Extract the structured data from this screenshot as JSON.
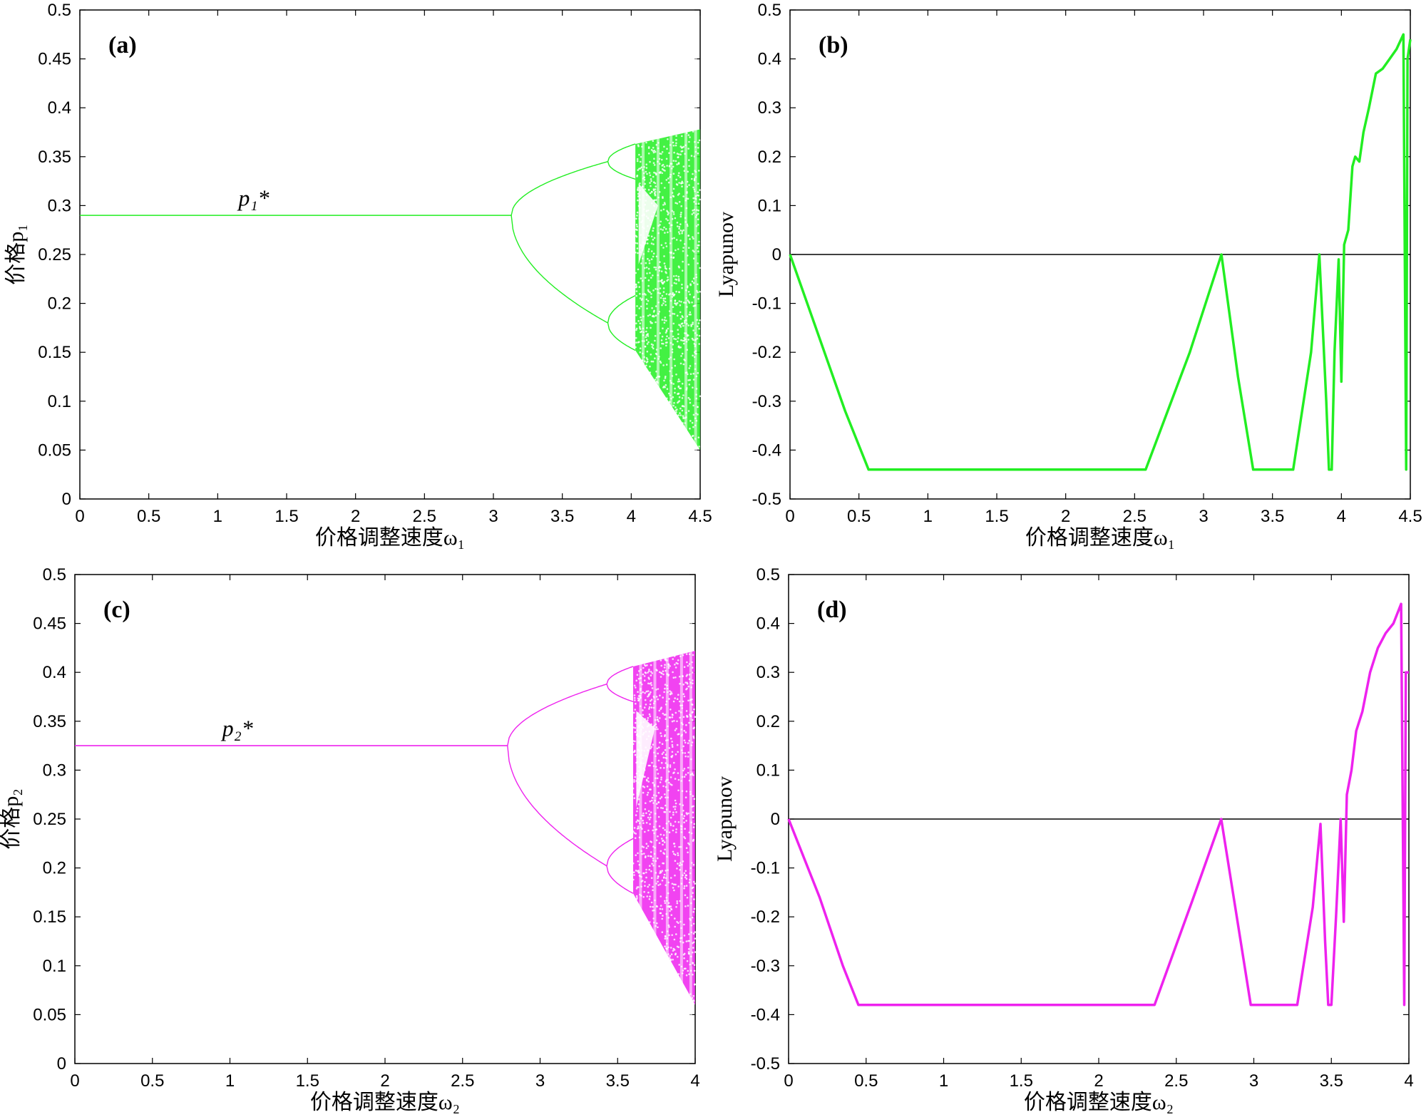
{
  "chart_data": [
    {
      "type": "scatter",
      "panel_label": "(a)",
      "xlabel": "价格调整速度ω₁",
      "ylabel": "价格p₁",
      "xlim": [
        0,
        4.5
      ],
      "ylim": [
        0,
        0.5
      ],
      "x_ticks": [
        "0",
        "0.5",
        "1",
        "1.5",
        "2",
        "2.5",
        "3",
        "3.5",
        "4",
        "4.5"
      ],
      "y_ticks": [
        "0",
        "0.05",
        "0.1",
        "0.15",
        "0.2",
        "0.25",
        "0.3",
        "0.35",
        "0.4",
        "0.45",
        "0.5"
      ],
      "color": "#22ee22",
      "annotation": {
        "text": "p₁*",
        "x": 1.15,
        "y": 0.3
      },
      "bifurcation": {
        "fixed_point": 0.29,
        "period2_start": 3.13,
        "period2_branches": [
          0.345,
          0.18
        ],
        "period4_start": 3.83,
        "chaos_start": 4.03,
        "chaos_end": 4.5,
        "chaos_range_end": [
          0.05,
          0.378
        ]
      }
    },
    {
      "type": "line",
      "panel_label": "(b)",
      "xlabel": "价格调整速度ω₁",
      "ylabel": "Lyapunov",
      "xlim": [
        0,
        4.5
      ],
      "ylim": [
        -0.5,
        0.5
      ],
      "x_ticks": [
        "0",
        "0.5",
        "1",
        "1.5",
        "2",
        "2.5",
        "3",
        "3.5",
        "4",
        "4.5"
      ],
      "y_ticks": [
        "-0.5",
        "-0.4",
        "-0.3",
        "-0.2",
        "-0.1",
        "0",
        "0.1",
        "0.2",
        "0.3",
        "0.4",
        "0.5"
      ],
      "color": "#22ee22",
      "zero_line": true,
      "x": [
        0,
        0.2,
        0.4,
        0.57,
        2.58,
        2.9,
        3.13,
        3.25,
        3.36,
        3.65,
        3.78,
        3.84,
        3.89,
        3.91,
        3.93,
        3.95,
        3.98,
        4.0,
        4.02,
        4.05,
        4.08,
        4.1,
        4.13,
        4.16,
        4.2,
        4.25,
        4.3,
        4.35,
        4.4,
        4.45,
        4.47,
        4.48,
        4.5
      ],
      "values": [
        0,
        -0.16,
        -0.32,
        -0.44,
        -0.44,
        -0.2,
        0,
        -0.25,
        -0.44,
        -0.44,
        -0.2,
        0,
        -0.3,
        -0.44,
        -0.44,
        -0.2,
        -0.01,
        -0.26,
        0.02,
        0.05,
        0.18,
        0.2,
        0.19,
        0.25,
        0.3,
        0.37,
        0.38,
        0.4,
        0.42,
        0.45,
        -0.44,
        0.4,
        0.44
      ]
    },
    {
      "type": "scatter",
      "panel_label": "(c)",
      "xlabel": "价格调整速度ω₂",
      "ylabel": "价格p₂",
      "xlim": [
        0,
        4
      ],
      "ylim": [
        0,
        0.5
      ],
      "x_ticks": [
        "0",
        "0.5",
        "1",
        "1.5",
        "2",
        "2.5",
        "3",
        "3.5",
        "4"
      ],
      "y_ticks": [
        "0",
        "0.05",
        "0.1",
        "0.15",
        "0.2",
        "0.25",
        "0.3",
        "0.35",
        "0.4",
        "0.45",
        "0.5"
      ],
      "color": "#ee22ee",
      "annotation": {
        "text": "p₂*",
        "x": 0.95,
        "y": 0.335
      },
      "bifurcation": {
        "fixed_point": 0.325,
        "period2_start": 2.79,
        "period2_branches": [
          0.388,
          0.202
        ],
        "period4_start": 3.43,
        "chaos_start": 3.6,
        "chaos_end": 4.0,
        "chaos_range_end": [
          0.06,
          0.422
        ]
      }
    },
    {
      "type": "line",
      "panel_label": "(d)",
      "xlabel": "价格调整速度ω₂",
      "ylabel": "Lyapunov",
      "xlim": [
        0,
        4
      ],
      "ylim": [
        -0.5,
        0.5
      ],
      "x_ticks": [
        "0",
        "0.5",
        "1",
        "1.5",
        "2",
        "2.5",
        "3",
        "3.5",
        "4"
      ],
      "y_ticks": [
        "-0.5",
        "-0.4",
        "-0.3",
        "-0.2",
        "-0.1",
        "0",
        "0.1",
        "0.2",
        "0.3",
        "0.4",
        "0.5"
      ],
      "color": "#ee22ee",
      "zero_line": true,
      "x": [
        0,
        0.2,
        0.35,
        0.45,
        2.36,
        2.6,
        2.79,
        2.9,
        2.98,
        3.28,
        3.38,
        3.43,
        3.46,
        3.48,
        3.5,
        3.53,
        3.56,
        3.58,
        3.6,
        3.63,
        3.66,
        3.7,
        3.75,
        3.8,
        3.85,
        3.9,
        3.95,
        3.97,
        3.98,
        4.0
      ],
      "values": [
        0,
        -0.16,
        -0.3,
        -0.38,
        -0.38,
        -0.17,
        0,
        -0.22,
        -0.38,
        -0.38,
        -0.18,
        -0.01,
        -0.25,
        -0.38,
        -0.38,
        -0.2,
        0,
        -0.21,
        0.05,
        0.1,
        0.18,
        0.22,
        0.3,
        0.35,
        0.38,
        0.4,
        0.44,
        -0.38,
        0.3,
        0.3
      ]
    }
  ]
}
